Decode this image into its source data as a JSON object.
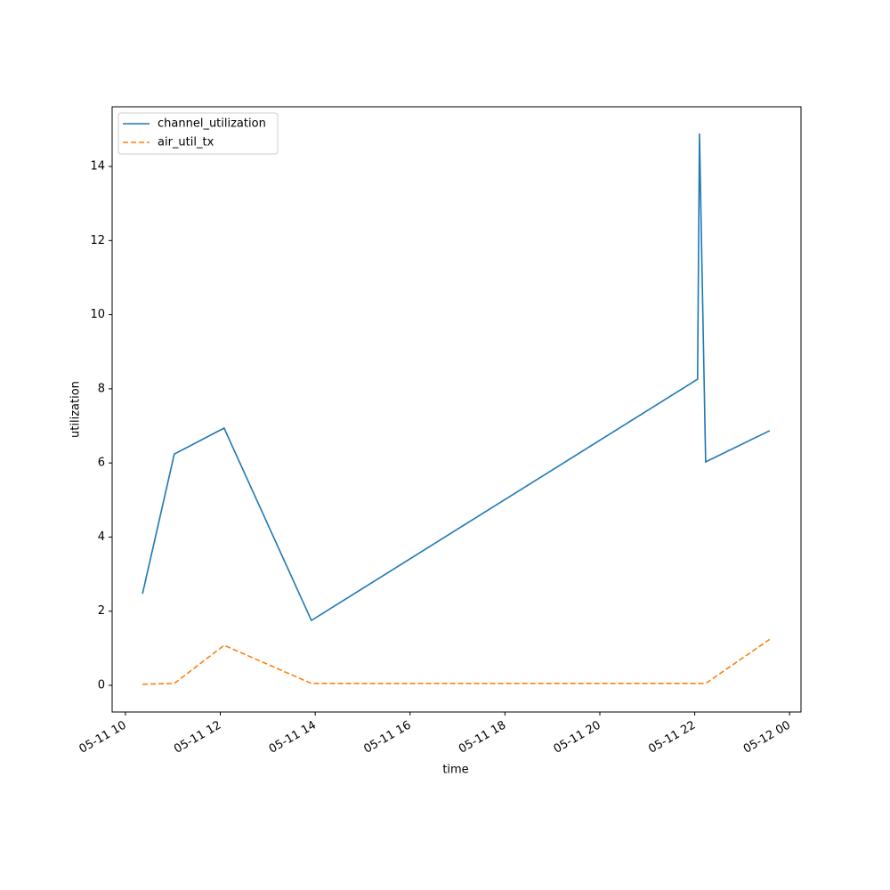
{
  "chart_data": {
    "type": "line",
    "x_label": "time",
    "y_label": "utilization",
    "x": [
      10.36,
      11.03,
      12.08,
      13.92,
      22.06,
      22.1,
      22.23,
      23.58
    ],
    "series": [
      {
        "name": "channel_utilization",
        "color": "#1f77b4",
        "linestyle": "solid",
        "values": [
          2.47,
          6.24,
          6.94,
          1.75,
          8.26,
          14.89,
          6.03,
          6.87
        ]
      },
      {
        "name": "air_util_tx",
        "color": "#ff7f0e",
        "linestyle": "dashed",
        "values": [
          0.03,
          0.05,
          1.08,
          0.05,
          0.05,
          0.05,
          0.05,
          1.24
        ]
      }
    ],
    "xlim": [
      9.72,
      24.24
    ],
    "ylim": [
      -0.72,
      15.61
    ],
    "xticks": [
      {
        "value": 10,
        "label": "05-11 10"
      },
      {
        "value": 12,
        "label": "05-11 12"
      },
      {
        "value": 14,
        "label": "05-11 14"
      },
      {
        "value": 16,
        "label": "05-11 16"
      },
      {
        "value": 18,
        "label": "05-11 18"
      },
      {
        "value": 20,
        "label": "05-11 20"
      },
      {
        "value": 22,
        "label": "05-11 22"
      },
      {
        "value": 24,
        "label": "05-12 00"
      }
    ],
    "yticks": [
      0,
      2,
      4,
      6,
      8,
      10,
      12,
      14
    ],
    "grid": false,
    "legend": "upper-left"
  }
}
